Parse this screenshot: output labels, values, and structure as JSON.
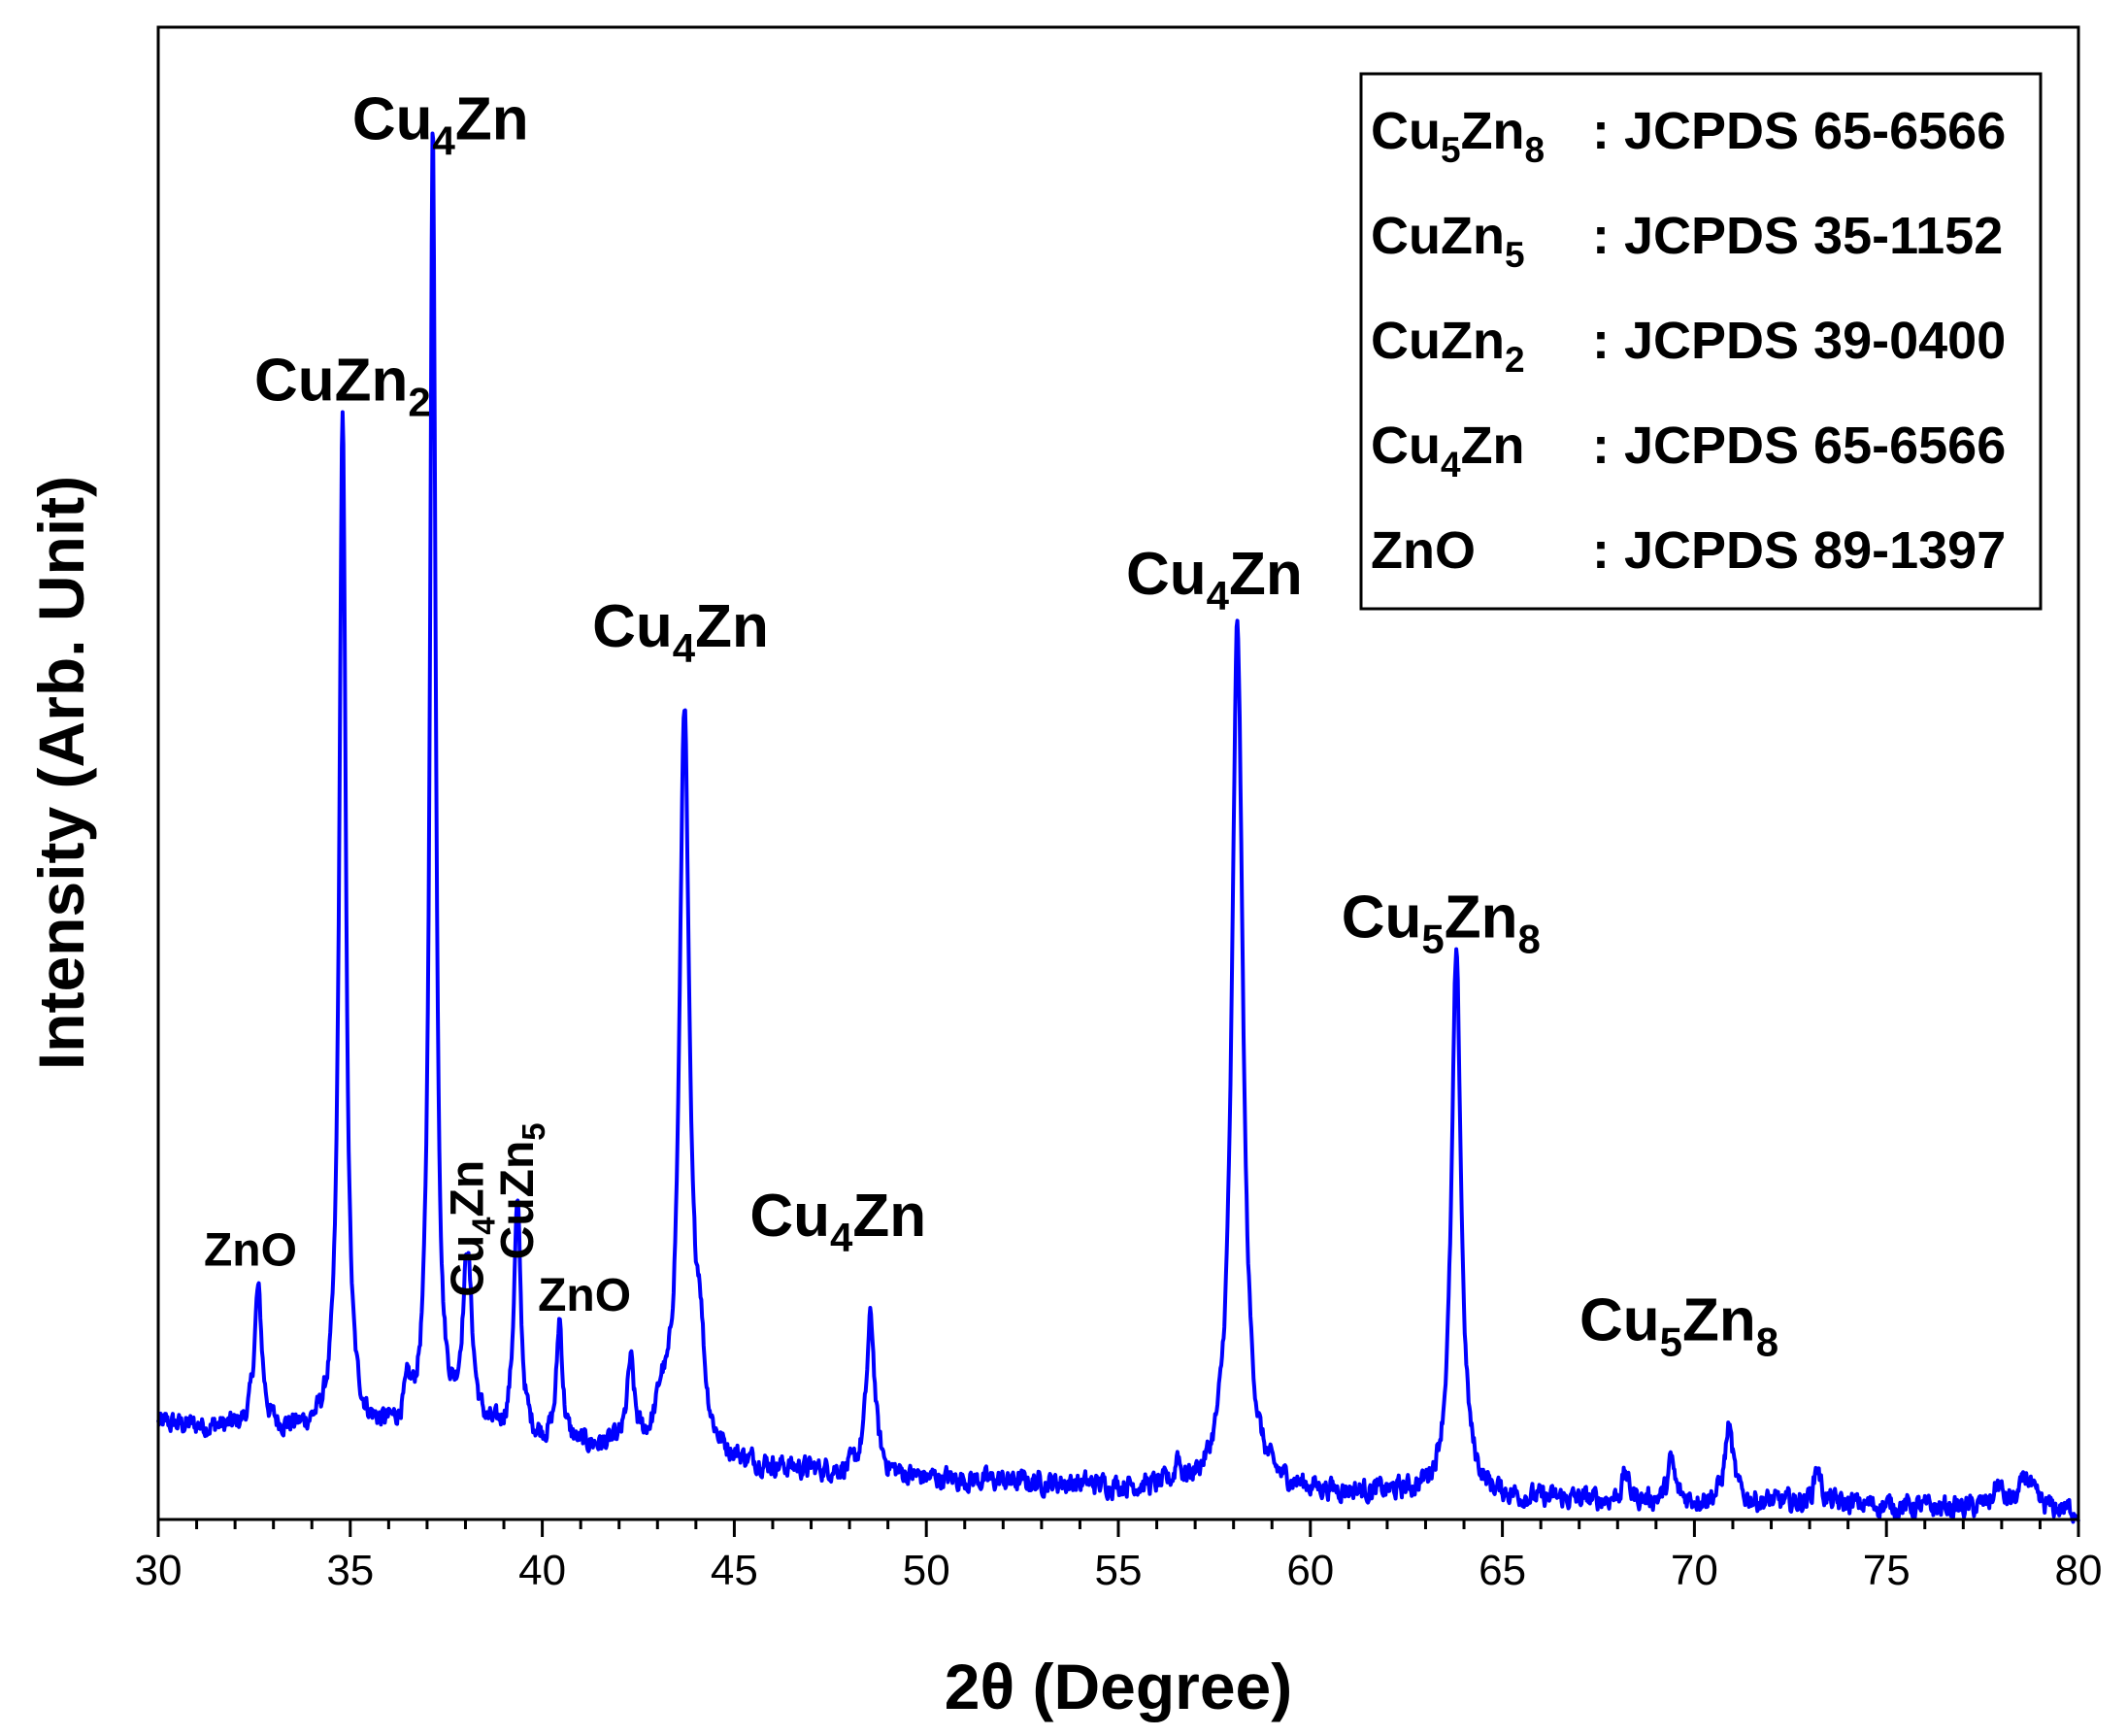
{
  "chart_data": {
    "type": "line",
    "title": "",
    "xlabel": "2θ (Degree)",
    "ylabel": "Intensity (Arb. Unit)",
    "xlim": [
      30,
      80
    ],
    "ylim": [
      0,
      100
    ],
    "x_ticks": [
      "30",
      "35",
      "40",
      "45",
      "50",
      "55",
      "60",
      "65",
      "70",
      "75",
      "80"
    ],
    "y_ticks_shown": false,
    "grid": false,
    "line_color": "#0000ff",
    "series": [
      {
        "baseline": [
          [
            30,
            6.4
          ],
          [
            32,
            6.0
          ],
          [
            34,
            5.8
          ],
          [
            36,
            5.6
          ],
          [
            40,
            5.0
          ],
          [
            44,
            4.0
          ],
          [
            46,
            3.4
          ],
          [
            50,
            2.7
          ],
          [
            54,
            2.3
          ],
          [
            56,
            2.0
          ],
          [
            60,
            1.8
          ],
          [
            64,
            1.5
          ],
          [
            66,
            1.3
          ],
          [
            70,
            1.2
          ],
          [
            74,
            1.0
          ],
          [
            76,
            0.8
          ],
          [
            80,
            0.6
          ]
        ],
        "peaks": [
          {
            "x": 32.6,
            "height": 9.3,
            "width": 0.12
          },
          {
            "x": 34.8,
            "height": 68.5,
            "width": 0.1
          },
          {
            "x": 36.5,
            "height": 2.0,
            "width": 0.12
          },
          {
            "x": 37.15,
            "height": 88.0,
            "width": 0.09
          },
          {
            "x": 38.05,
            "height": 11.8,
            "width": 0.15
          },
          {
            "x": 39.35,
            "height": 15.5,
            "width": 0.11
          },
          {
            "x": 40.45,
            "height": 8.2,
            "width": 0.09
          },
          {
            "x": 42.3,
            "height": 5.5,
            "width": 0.11
          },
          {
            "x": 43.1,
            "height": 2.5,
            "width": 0.15
          },
          {
            "x": 43.7,
            "height": 50.0,
            "width": 0.15
          },
          {
            "x": 44.1,
            "height": 6.0,
            "width": 0.13
          },
          {
            "x": 48.55,
            "height": 10.5,
            "width": 0.13
          },
          {
            "x": 56.55,
            "height": 2.0,
            "width": 0.06
          },
          {
            "x": 58.1,
            "height": 58.0,
            "width": 0.17
          },
          {
            "x": 63.8,
            "height": 36.0,
            "width": 0.15
          },
          {
            "x": 68.2,
            "height": 1.8,
            "width": 0.1
          },
          {
            "x": 69.4,
            "height": 2.7,
            "width": 0.1
          },
          {
            "x": 70.9,
            "height": 5.0,
            "width": 0.13
          },
          {
            "x": 73.2,
            "height": 2.6,
            "width": 0.1
          },
          {
            "x": 77.9,
            "height": 1.5,
            "width": 0.15
          },
          {
            "x": 78.65,
            "height": 2.2,
            "width": 0.18
          }
        ]
      }
    ],
    "peak_labels": [
      {
        "main": "ZnO",
        "sub": "",
        "x": 32.4,
        "y": 17.0,
        "big": false,
        "rotated": false
      },
      {
        "main": "CuZn",
        "sub": "2",
        "x": 34.8,
        "y": 75.0,
        "big": true,
        "rotated": false
      },
      {
        "main": "Cu",
        "sub": "4",
        "tail": "Zn",
        "x": 37.35,
        "y": 92.5,
        "big": true,
        "rotated": false
      },
      {
        "main": "Cu",
        "sub": "4",
        "tail": "Zn",
        "x": 38.05,
        "y": 19.5,
        "big": false,
        "rotated": true
      },
      {
        "main": "CuZn",
        "sub": "5",
        "x": 39.35,
        "y": 22.0,
        "big": false,
        "rotated": true
      },
      {
        "main": "ZnO",
        "sub": "",
        "x": 41.1,
        "y": 14.0,
        "big": false,
        "rotated": false
      },
      {
        "main": "Cu",
        "sub": "4",
        "tail": "Zn",
        "x": 43.6,
        "y": 58.5,
        "big": true,
        "rotated": false
      },
      {
        "main": "Cu",
        "sub": "4",
        "tail": "Zn",
        "x": 47.7,
        "y": 19.0,
        "big": true,
        "rotated": false
      },
      {
        "main": "Cu",
        "sub": "4",
        "tail": "Zn",
        "x": 57.5,
        "y": 62.0,
        "big": true,
        "rotated": false
      },
      {
        "main": "Cu",
        "sub": "5",
        "tail": "Zn",
        "sub2": "8",
        "x": 63.4,
        "y": 39.0,
        "big": true,
        "rotated": false
      },
      {
        "main": "Cu",
        "sub": "5",
        "tail": "Zn",
        "sub2": "8",
        "x": 69.6,
        "y": 12.0,
        "big": true,
        "rotated": false
      }
    ],
    "legend": {
      "placement": "top-right",
      "entries": [
        {
          "main": "Cu",
          "sub": "5",
          "tail": "Zn",
          "sub2": "8",
          "ref": ": JCPDS 65-6566"
        },
        {
          "main": "CuZn",
          "sub": "5",
          "tail": "",
          "sub2": "",
          "ref": ": JCPDS 35-1152"
        },
        {
          "main": "CuZn",
          "sub": "2",
          "tail": "",
          "sub2": "",
          "ref": ": JCPDS 39-0400"
        },
        {
          "main": "Cu",
          "sub": "4",
          "tail": "Zn",
          "sub2": "",
          "ref": ": JCPDS 65-6566"
        },
        {
          "main": "ZnO",
          "sub": "",
          "tail": "",
          "sub2": "",
          "ref": ": JCPDS 89-1397"
        }
      ]
    }
  }
}
